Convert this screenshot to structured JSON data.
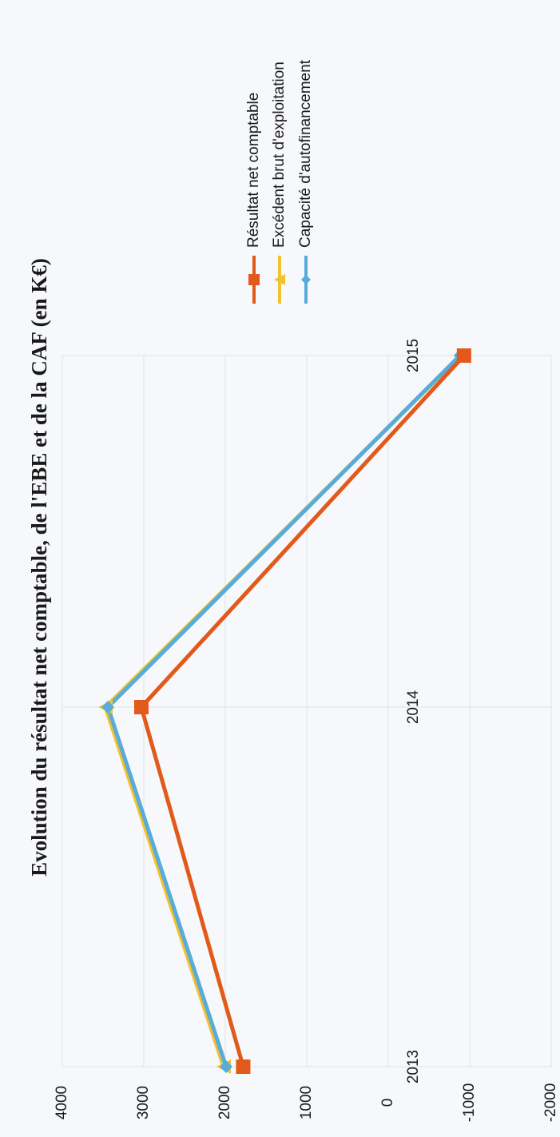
{
  "chart_data": {
    "type": "line",
    "title": "Evolution du résultat net comptable, de l'EBE et de la CAF (en K€)",
    "xlabel": "",
    "ylabel": "",
    "categories": [
      "2013",
      "2014",
      "2015"
    ],
    "ylim": [
      -2000,
      4000
    ],
    "yticks": [
      4000,
      3000,
      2000,
      1000,
      0,
      -1000,
      -2000
    ],
    "grid": true,
    "legend_position": "right",
    "orientation": "rotated 90° clockwise",
    "series": [
      {
        "name": "Résultat net comptable",
        "values": [
          1780,
          3030,
          -930
        ],
        "color": "#e2591a",
        "marker": "square"
      },
      {
        "name": "Excédent brut d'exploitation",
        "values": [
          2020,
          3470,
          -890
        ],
        "color": "#f2c12e",
        "marker": "triangle"
      },
      {
        "name": "Capacité d'autofinancement",
        "values": [
          1990,
          3440,
          -880
        ],
        "color": "#57acd9",
        "marker": "diamond"
      }
    ]
  }
}
